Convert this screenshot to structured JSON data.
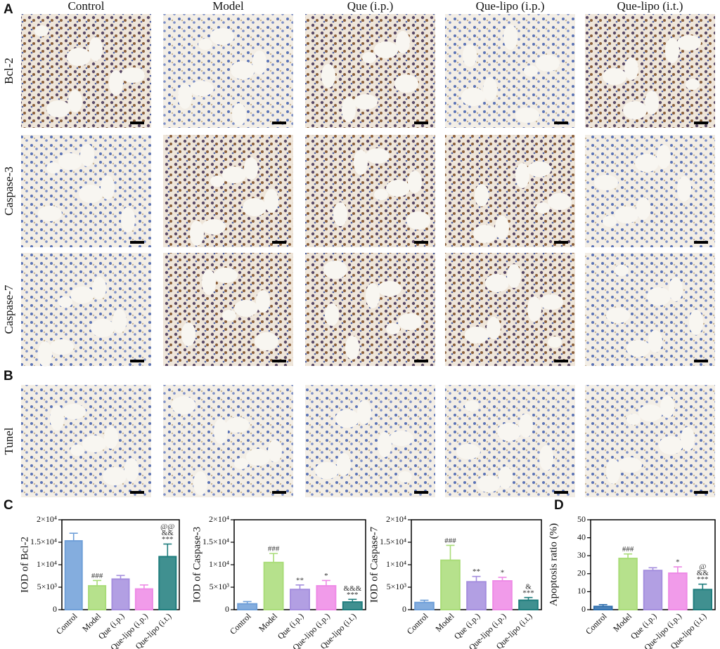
{
  "panels": {
    "a": "A",
    "b": "B",
    "c": "C",
    "d": "D"
  },
  "columns": [
    "Control",
    "Model",
    "Que (i.p.)",
    "Que-lipo (i.p.)",
    "Que-lipo (i.t.)"
  ],
  "rows": [
    "Bcl-2",
    "Caspase-3",
    "Caspase-7",
    "Tunel"
  ],
  "chart_data": [
    {
      "type": "bar",
      "ylabel": "IOD of Bcl-2",
      "categories": [
        "Control",
        "Model",
        "Que (i.p.)",
        "Que-lipo (i.p.)",
        "Que-lipo (i.t.)"
      ],
      "colors": [
        "#6f9fd8",
        "#a9dc78",
        "#a48ede",
        "#ee8ae6",
        "#1f7d7d"
      ],
      "values": [
        15300,
        5300,
        6800,
        4600,
        11800
      ],
      "errors": [
        1700,
        1200,
        800,
        900,
        2800
      ],
      "annotations": [
        null,
        [
          "###"
        ],
        null,
        null,
        [
          "@@",
          "&&",
          "***"
        ]
      ],
      "ylim": [
        0,
        20000
      ],
      "yticks": [
        0,
        {
          "value": 5000,
          "label": "5×10³"
        },
        {
          "value": 10000,
          "label": "1×10⁴"
        },
        {
          "value": 15000,
          "label": "1.5×10⁴"
        },
        {
          "value": 20000,
          "label": "2×10⁴"
        }
      ]
    },
    {
      "type": "bar",
      "ylabel": "IOD of Caspase-3",
      "categories": [
        "Control",
        "Model",
        "Que (i.p.)",
        "Que-lipo (i.p.)",
        "Que-lipo (i.t.)"
      ],
      "colors": [
        "#6f9fd8",
        "#a9dc78",
        "#a48ede",
        "#ee8ae6",
        "#1f7d7d"
      ],
      "values": [
        1300,
        10500,
        4500,
        5300,
        1700
      ],
      "errors": [
        500,
        2000,
        1000,
        1200,
        600
      ],
      "annotations": [
        null,
        [
          "###"
        ],
        [
          "**"
        ],
        [
          "*"
        ],
        [
          "&&&",
          "***"
        ]
      ],
      "ylim": [
        0,
        20000
      ],
      "yticks": [
        0,
        {
          "value": 5000,
          "label": "5×10³"
        },
        {
          "value": 10000,
          "label": "1×10⁴"
        },
        {
          "value": 15000,
          "label": "1.5×10⁴"
        },
        {
          "value": 20000,
          "label": "2×10⁴"
        }
      ]
    },
    {
      "type": "bar",
      "ylabel": "IOD of Caspase-7",
      "categories": [
        "Control",
        "Model",
        "Que (i.p.)",
        "Que-lipo (i.p.)",
        "Que-lipo (i.t.)"
      ],
      "colors": [
        "#6f9fd8",
        "#a9dc78",
        "#a48ede",
        "#ee8ae6",
        "#1f7d7d"
      ],
      "values": [
        1600,
        11000,
        6200,
        6400,
        2100
      ],
      "errors": [
        500,
        3300,
        1200,
        800,
        600
      ],
      "annotations": [
        null,
        [
          "###"
        ],
        [
          "**"
        ],
        [
          "*"
        ],
        [
          "&",
          "***"
        ]
      ],
      "ylim": [
        0,
        20000
      ],
      "yticks": [
        0,
        {
          "value": 5000,
          "label": "5×10³"
        },
        {
          "value": 10000,
          "label": "1×10⁴"
        },
        {
          "value": 15000,
          "label": "1.5×10⁴"
        },
        {
          "value": 20000,
          "label": "2×10⁴"
        }
      ]
    },
    {
      "type": "bar",
      "ylabel": "Apoptosis ratio (%)",
      "categories": [
        "Control",
        "Model",
        "Que (i.p.)",
        "Que-lipo (i.p.)",
        "Que-lipo (i.t.)"
      ],
      "colors": [
        "#2f6fae",
        "#a9dc78",
        "#a48ede",
        "#ee8ae6",
        "#1f7d7d"
      ],
      "values": [
        1.8,
        28.5,
        21.8,
        20.3,
        11.2
      ],
      "errors": [
        1,
        2.5,
        1.5,
        3.5,
        3
      ],
      "annotations": [
        null,
        [
          "###"
        ],
        null,
        [
          "*"
        ],
        [
          "@",
          "&&",
          "***"
        ]
      ],
      "ylim": [
        0,
        50
      ],
      "yticks": [
        0,
        10,
        20,
        30,
        40,
        50
      ]
    }
  ]
}
